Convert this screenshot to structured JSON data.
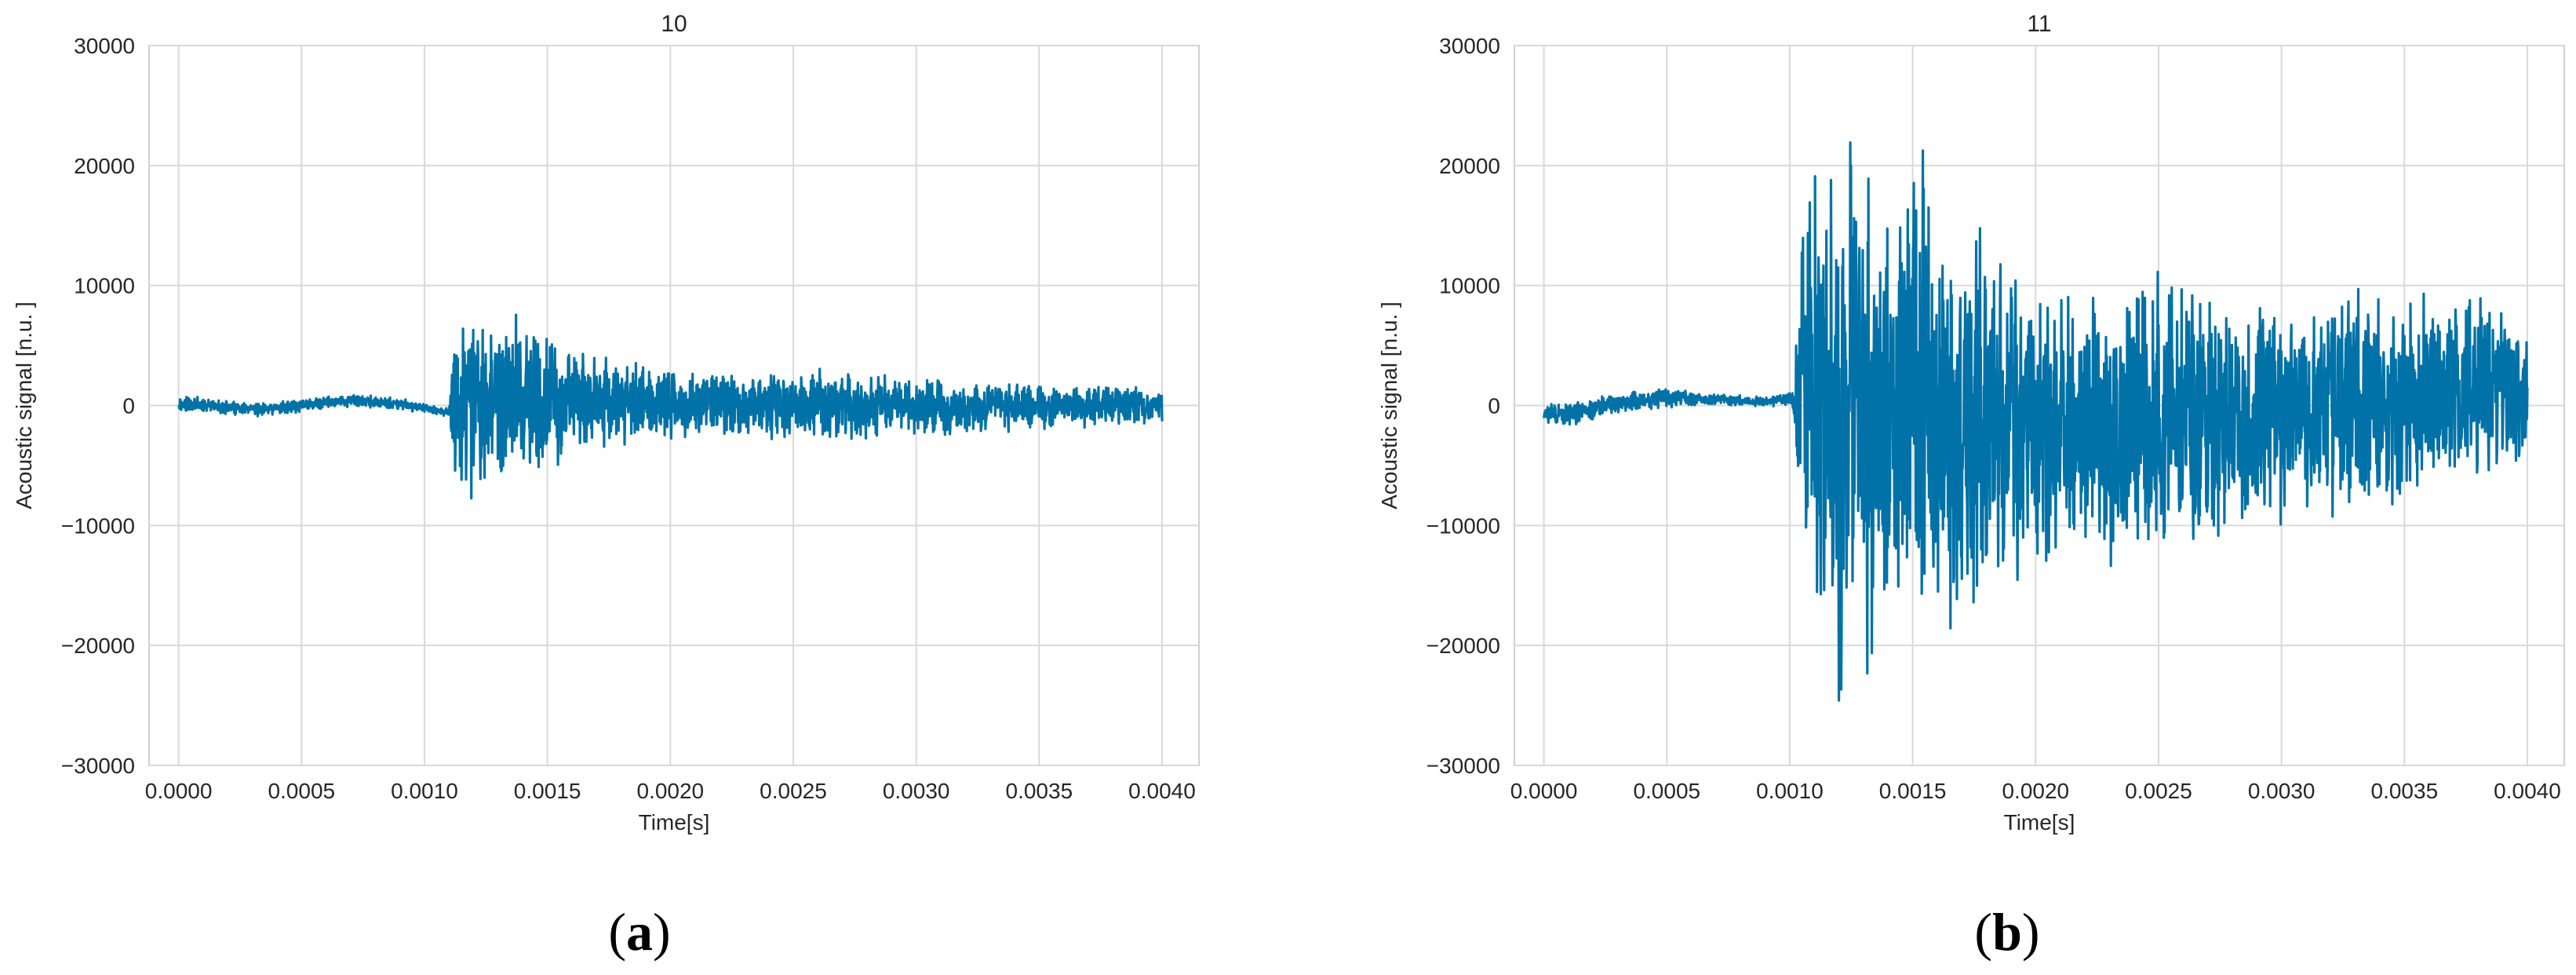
{
  "figure": {
    "panels": [
      {
        "label_open": "(",
        "label_letter": "a",
        "label_close": ")"
      },
      {
        "label_open": "(",
        "label_letter": "b",
        "label_close": ")"
      }
    ]
  },
  "colors": {
    "signal": "#0072a7",
    "grid": "#d9d9d9",
    "frame": "#d0d0d0",
    "text": "#262626"
  },
  "chart_data": [
    {
      "type": "line",
      "title": "10",
      "xlabel": "Time[s]",
      "ylabel": "Acoustic signal [n.u. ]",
      "xlim": [
        -0.00012,
        0.00415
      ],
      "ylim": [
        -30000,
        30000
      ],
      "xticks": [
        0.0,
        0.0005,
        0.001,
        0.0015,
        0.002,
        0.0025,
        0.003,
        0.0035,
        0.004
      ],
      "xtick_labels": [
        "0.0000",
        "0.0005",
        "0.0010",
        "0.0015",
        "0.0020",
        "0.0025",
        "0.0030",
        "0.0035",
        "0.0040"
      ],
      "yticks": [
        30000,
        20000,
        10000,
        0,
        -10000,
        -20000,
        -30000
      ],
      "ytick_labels": [
        "30000",
        "20000",
        "10000",
        "0",
        "−10000",
        "−20000",
        "−30000"
      ],
      "grid": true,
      "series": [
        {
          "x": [
            0.0,
            0.0001,
            0.0003,
            0.0005,
            0.0007,
            0.0009,
            0.00105,
            0.0011,
            0.00111,
            0.00115,
            0.0012,
            0.00125,
            0.0013,
            0.00135,
            0.0014,
            0.0015,
            0.0016,
            0.0017,
            0.0018,
            0.002,
            0.0022,
            0.0025,
            0.0028,
            0.003,
            0.0032,
            0.0035,
            0.0038,
            0.004
          ],
          "y_max": [
            1200,
            600,
            200,
            600,
            1000,
            600,
            0,
            0,
            5000,
            8500,
            9500,
            9000,
            8000,
            10500,
            7500,
            6500,
            5500,
            4500,
            4000,
            3500,
            3000,
            3500,
            3000,
            2500,
            2200,
            2000,
            1800,
            1500
          ],
          "y_min": [
            -800,
            -600,
            -1000,
            -600,
            -200,
            -400,
            -800,
            -1200,
            -6000,
            -9000,
            -10500,
            -9500,
            -9000,
            -8000,
            -6500,
            -6000,
            -5000,
            -4000,
            -3500,
            -3000,
            -2800,
            -3000,
            -3000,
            -2800,
            -2500,
            -2200,
            -1800,
            -1500
          ]
        }
      ]
    },
    {
      "type": "line",
      "title": "11",
      "xlabel": "Time[s]",
      "ylabel": "Acoustic signal [n.u. ]",
      "xlim": [
        -0.00012,
        0.00415
      ],
      "ylim": [
        -30000,
        30000
      ],
      "xticks": [
        0.0,
        0.0005,
        0.001,
        0.0015,
        0.002,
        0.0025,
        0.003,
        0.0035,
        0.004
      ],
      "xtick_labels": [
        "0.0000",
        "0.0005",
        "0.0010",
        "0.0015",
        "0.0020",
        "0.0025",
        "0.0030",
        "0.0035",
        "0.0040"
      ],
      "yticks": [
        30000,
        20000,
        10000,
        0,
        -10000,
        -20000,
        -30000
      ],
      "ytick_labels": [
        "30000",
        "20000",
        "10000",
        "0",
        "−10000",
        "−20000",
        "−30000"
      ],
      "grid": true,
      "series": [
        {
          "x": [
            0.0,
            0.0001,
            0.0003,
            0.0005,
            0.0007,
            0.0009,
            0.001,
            0.00102,
            0.00105,
            0.0011,
            0.00115,
            0.0012,
            0.00125,
            0.0013,
            0.00135,
            0.0014,
            0.0015,
            0.0016,
            0.0017,
            0.0018,
            0.002,
            0.0022,
            0.0025,
            0.0028,
            0.003,
            0.0032,
            0.0035,
            0.0038,
            0.004
          ],
          "y_max": [
            0,
            500,
            1200,
            1500,
            1000,
            800,
            1200,
            1500,
            23000,
            22000,
            21000,
            23500,
            24500,
            23000,
            20000,
            18000,
            25000,
            19000,
            17500,
            16000,
            12000,
            10000,
            12000,
            10000,
            9000,
            10500,
            10000,
            9500,
            7500
          ],
          "y_min": [
            -1500,
            -2000,
            -800,
            -200,
            0,
            -200,
            0,
            -1500,
            -16000,
            -21000,
            -20000,
            -26500,
            -24000,
            -23000,
            -22000,
            -20000,
            -21000,
            -26500,
            -19000,
            -17000,
            -16000,
            -14000,
            -13500,
            -12000,
            -11000,
            -10500,
            -9000,
            -7000,
            -5000
          ]
        }
      ]
    }
  ]
}
